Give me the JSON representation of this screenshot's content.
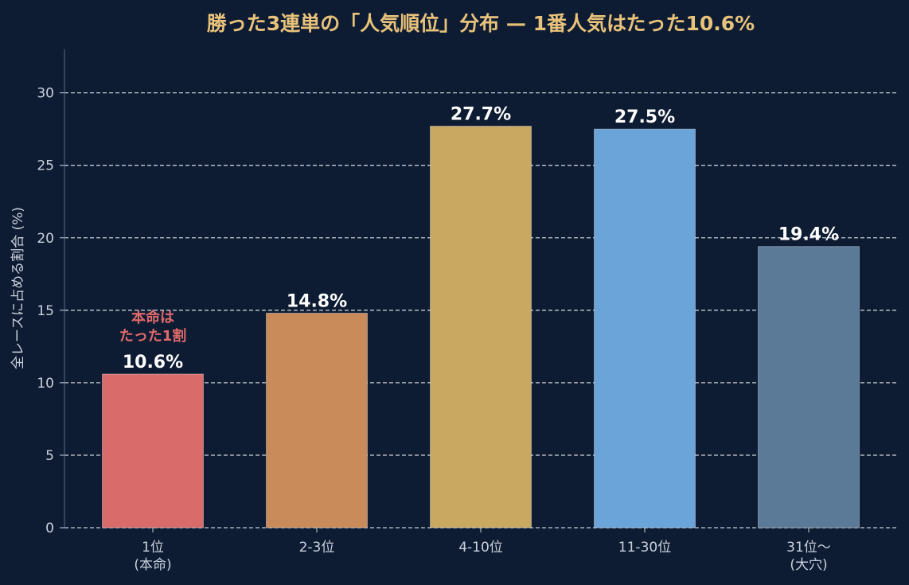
{
  "chart_data": {
    "type": "bar",
    "title": "勝った3連単の「人気順位」分布 — 1番人気はたった10.6%",
    "ylabel": "全レースに占める割合 (%)",
    "xlabel": "",
    "ylim": [
      0,
      33
    ],
    "yticks": [
      0,
      5,
      10,
      15,
      20,
      25,
      30
    ],
    "grid": true,
    "categories": [
      [
        "1位",
        "(本命)"
      ],
      [
        "2-3位"
      ],
      [
        "4-10位"
      ],
      [
        "11-30位"
      ],
      [
        "31位〜",
        "(大穴)"
      ]
    ],
    "values": [
      10.6,
      14.8,
      27.7,
      27.5,
      19.4
    ],
    "value_labels": [
      "10.6%",
      "14.8%",
      "27.7%",
      "27.5%",
      "19.4%"
    ],
    "colors": [
      "#d96b6b",
      "#c98b5a",
      "#c9a862",
      "#6aa4d8",
      "#5a7a98"
    ],
    "annotation": {
      "category_index": 0,
      "lines": [
        "本命は",
        "たった1割"
      ],
      "color": "#e06a6a"
    }
  },
  "theme": {
    "background": "#0e1c33",
    "title_color": "#e8c27a",
    "text_color": "#c9d1de",
    "grid_color": "#d8dde6",
    "axis_color": "#5a6a85"
  }
}
